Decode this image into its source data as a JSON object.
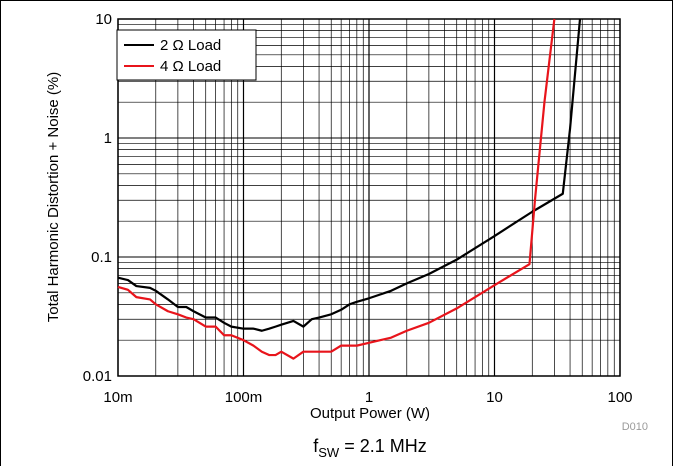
{
  "chart_data": {
    "type": "line",
    "xlabel": "Output Power (W)",
    "ylabel": "Total Harmonic Distortion + Noise (%)",
    "xscale": "log",
    "yscale": "log",
    "xlim": [
      0.01,
      100
    ],
    "ylim": [
      0.01,
      10
    ],
    "x_ticks": [
      {
        "value": 0.01,
        "label": "10m"
      },
      {
        "value": 0.1,
        "label": "100m"
      },
      {
        "value": 1,
        "label": "1"
      },
      {
        "value": 10,
        "label": "10"
      },
      {
        "value": 100,
        "label": "100"
      }
    ],
    "y_ticks": [
      {
        "value": 0.01,
        "label": "0.01"
      },
      {
        "value": 0.1,
        "label": "0.1"
      },
      {
        "value": 1,
        "label": "1"
      },
      {
        "value": 10,
        "label": "10"
      }
    ],
    "grid": true,
    "legend_position": "top-left",
    "series": [
      {
        "name": "2 Ω Load",
        "color": "#000000",
        "x": [
          0.01,
          0.012,
          0.014,
          0.018,
          0.02,
          0.025,
          0.03,
          0.035,
          0.04,
          0.05,
          0.06,
          0.07,
          0.08,
          0.1,
          0.12,
          0.14,
          0.16,
          0.18,
          0.2,
          0.25,
          0.3,
          0.35,
          0.4,
          0.5,
          0.6,
          0.7,
          0.8,
          1,
          1.5,
          2,
          3,
          5,
          10,
          20,
          35,
          40,
          48
        ],
        "y": [
          0.067,
          0.064,
          0.057,
          0.055,
          0.052,
          0.044,
          0.038,
          0.038,
          0.035,
          0.031,
          0.031,
          0.028,
          0.026,
          0.025,
          0.025,
          0.024,
          0.025,
          0.026,
          0.027,
          0.029,
          0.026,
          0.03,
          0.031,
          0.033,
          0.036,
          0.04,
          0.042,
          0.045,
          0.052,
          0.06,
          0.072,
          0.095,
          0.15,
          0.24,
          0.34,
          1.2,
          10
        ]
      },
      {
        "name": "4 Ω Load",
        "color": "#e8141b",
        "x": [
          0.01,
          0.012,
          0.014,
          0.018,
          0.02,
          0.025,
          0.03,
          0.035,
          0.04,
          0.05,
          0.06,
          0.07,
          0.08,
          0.1,
          0.12,
          0.14,
          0.16,
          0.18,
          0.2,
          0.25,
          0.3,
          0.35,
          0.4,
          0.5,
          0.6,
          0.7,
          0.8,
          1,
          1.5,
          2,
          3,
          5,
          10,
          19,
          21,
          25,
          30
        ],
        "y": [
          0.056,
          0.053,
          0.046,
          0.044,
          0.04,
          0.035,
          0.033,
          0.031,
          0.03,
          0.026,
          0.026,
          0.022,
          0.022,
          0.02,
          0.018,
          0.016,
          0.015,
          0.015,
          0.016,
          0.014,
          0.016,
          0.016,
          0.016,
          0.016,
          0.018,
          0.018,
          0.018,
          0.019,
          0.021,
          0.024,
          0.028,
          0.037,
          0.058,
          0.087,
          0.3,
          2,
          10
        ]
      }
    ]
  },
  "figure_code": "D010",
  "caption": {
    "prefix": "f",
    "subscript": "SW",
    "suffix": " = 2.1 MHz"
  }
}
